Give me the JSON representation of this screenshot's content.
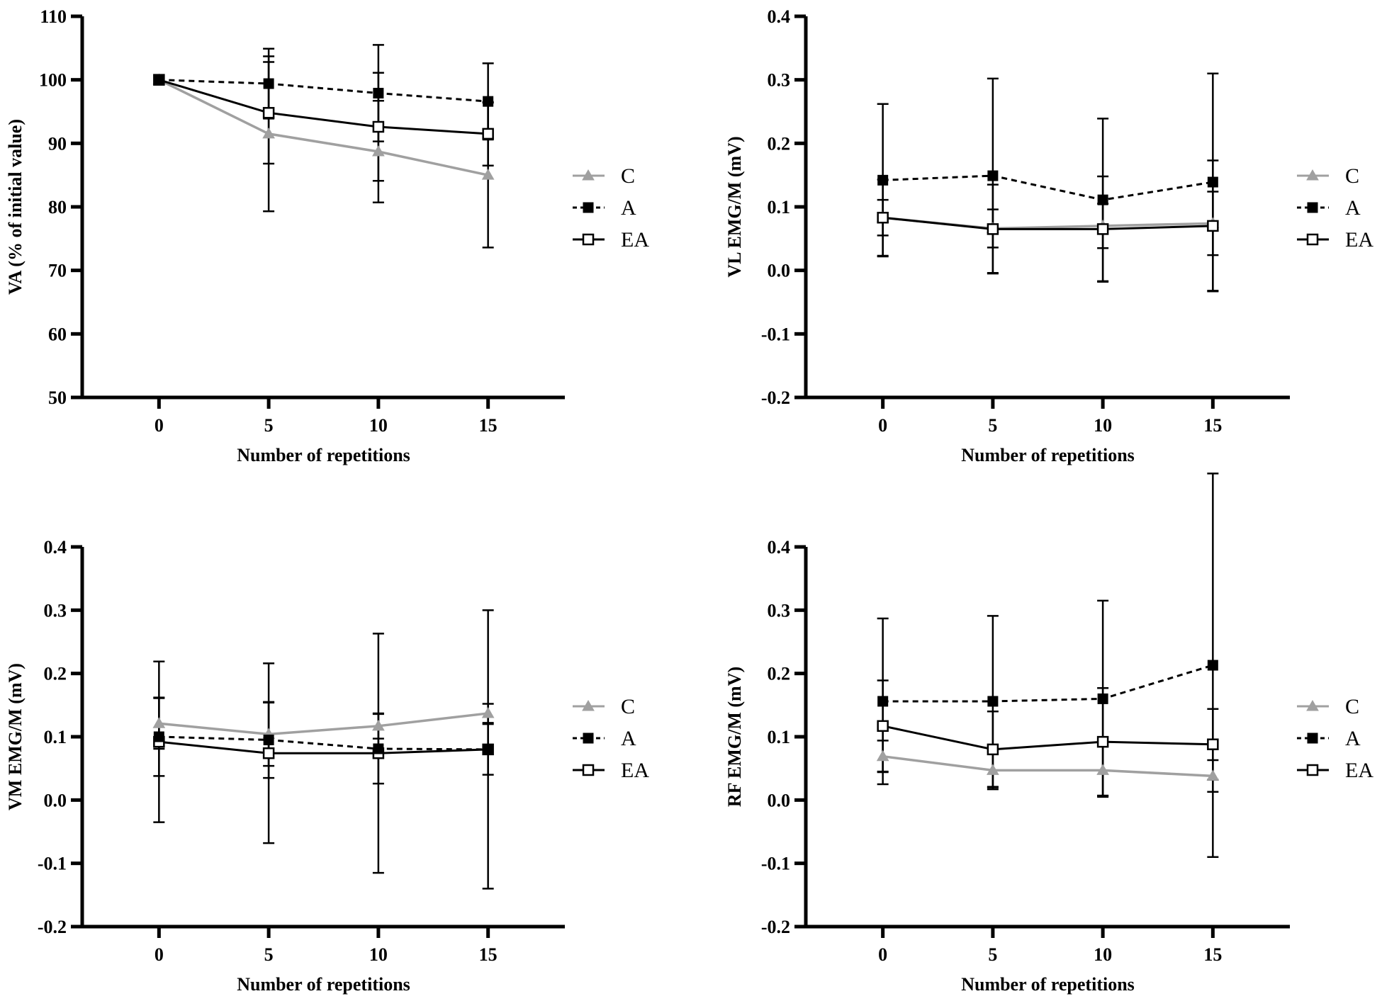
{
  "chart_data": [
    {
      "type": "line",
      "id": "va",
      "title": "",
      "xlabel": "Number of repetitions",
      "ylabel": "VA (% of initial value)",
      "x": [
        0,
        5,
        10,
        15
      ],
      "xlim": [
        -3.5,
        18.5
      ],
      "xticks": [
        0,
        5,
        10,
        15
      ],
      "xtick_labels": [
        "0",
        "5",
        "10",
        "15"
      ],
      "ylim": [
        50,
        110
      ],
      "yticks": [
        50,
        60,
        70,
        80,
        90,
        100,
        110
      ],
      "ytick_labels": [
        "50",
        "60",
        "70",
        "80",
        "90",
        "100",
        "110"
      ],
      "grid": false,
      "legend_position": "right",
      "series": [
        {
          "name": "C",
          "values": [
            100,
            91.5,
            88.7,
            85.0
          ],
          "error": [
            0,
            12.2,
            8.0,
            11.4
          ]
        },
        {
          "name": "A",
          "values": [
            100,
            99.4,
            97.9,
            96.6
          ],
          "error": [
            0,
            5.5,
            7.6,
            6.0
          ]
        },
        {
          "name": "EA",
          "values": [
            100,
            94.8,
            92.6,
            91.5
          ],
          "error": [
            0,
            8.0,
            8.5,
            5.0
          ]
        }
      ]
    },
    {
      "type": "line",
      "id": "vl",
      "title": "",
      "xlabel": "Number of repetitions",
      "ylabel": "VL EMG/M (mV)",
      "x": [
        0,
        5,
        10,
        15
      ],
      "xlim": [
        -3.5,
        18.5
      ],
      "xticks": [
        0,
        5,
        10,
        15
      ],
      "xtick_labels": [
        "0",
        "5",
        "10",
        "15"
      ],
      "ylim": [
        -0.2,
        0.4
      ],
      "yticks": [
        -0.2,
        -0.1,
        0.0,
        0.1,
        0.2,
        0.3,
        0.4
      ],
      "ytick_labels": [
        "-0.2",
        "-0.1",
        "0.0",
        "0.1",
        "0.2",
        "0.3",
        "0.4"
      ],
      "grid": false,
      "legend_position": "right",
      "series": [
        {
          "name": "C",
          "values": [
            0.083,
            0.066,
            0.07,
            0.074
          ],
          "error": [
            0.028,
            0.03,
            0.035,
            0.05
          ]
        },
        {
          "name": "A",
          "values": [
            0.142,
            0.149,
            0.111,
            0.139
          ],
          "error": [
            0.12,
            0.153,
            0.128,
            0.171
          ]
        },
        {
          "name": "EA",
          "values": [
            0.083,
            0.065,
            0.065,
            0.07
          ],
          "error": [
            0.06,
            0.07,
            0.083,
            0.103
          ]
        }
      ]
    },
    {
      "type": "line",
      "id": "vm",
      "title": "",
      "xlabel": "Number of repetitions",
      "ylabel": "VM EMG/M (mV)",
      "x": [
        0,
        5,
        10,
        15
      ],
      "xlim": [
        -3.5,
        18.5
      ],
      "xticks": [
        0,
        5,
        10,
        15
      ],
      "xtick_labels": [
        "0",
        "5",
        "10",
        "15"
      ],
      "ylim": [
        -0.2,
        0.4
      ],
      "yticks": [
        -0.2,
        -0.1,
        0.0,
        0.1,
        0.2,
        0.3,
        0.4
      ],
      "ytick_labels": [
        "-0.2",
        "-0.1",
        "0.0",
        "0.1",
        "0.2",
        "0.3",
        "0.4"
      ],
      "grid": false,
      "legend_position": "right",
      "series": [
        {
          "name": "C",
          "values": [
            0.121,
            0.104,
            0.117,
            0.137
          ],
          "error": [
            0.04,
            0.05,
            0.02,
            0.015
          ]
        },
        {
          "name": "A",
          "values": [
            0.1,
            0.095,
            0.081,
            0.08
          ],
          "error": [
            0.062,
            0.06,
            0.055,
            0.04
          ]
        },
        {
          "name": "EA",
          "values": [
            0.092,
            0.074,
            0.074,
            0.08
          ],
          "error": [
            0.127,
            0.142,
            0.189,
            0.22
          ]
        }
      ]
    },
    {
      "type": "line",
      "id": "rf",
      "title": "",
      "xlabel": "Number of repetitions",
      "ylabel": "RF EMG/M (mV)",
      "x": [
        0,
        5,
        10,
        15
      ],
      "xlim": [
        -3.5,
        18.5
      ],
      "xticks": [
        0,
        5,
        10,
        15
      ],
      "xtick_labels": [
        "0",
        "5",
        "10",
        "15"
      ],
      "ylim": [
        -0.2,
        0.4
      ],
      "yticks": [
        -0.2,
        -0.1,
        0.0,
        0.1,
        0.2,
        0.3,
        0.4
      ],
      "ytick_labels": [
        "-0.2",
        "-0.1",
        "0.0",
        "0.1",
        "0.2",
        "0.3",
        "0.4"
      ],
      "grid": false,
      "legend_position": "right",
      "series": [
        {
          "name": "C",
          "values": [
            0.069,
            0.047,
            0.047,
            0.038
          ],
          "error": [
            0.025,
            0.03,
            0.04,
            0.025
          ]
        },
        {
          "name": "A",
          "values": [
            0.156,
            0.156,
            0.16,
            0.213
          ],
          "error": [
            0.131,
            0.135,
            0.155,
            0.303
          ]
        },
        {
          "name": "EA",
          "values": [
            0.117,
            0.08,
            0.092,
            0.088
          ],
          "error": [
            0.072,
            0.06,
            0.085,
            0.056
          ]
        }
      ]
    }
  ],
  "styles": {
    "C": {
      "color": "#a0a0a0",
      "dash": "",
      "marker": "triangle"
    },
    "A": {
      "color": "#000000",
      "dash": "8,6",
      "marker": "filled-square"
    },
    "EA": {
      "color": "#000000",
      "dash": "",
      "marker": "open-square"
    }
  }
}
